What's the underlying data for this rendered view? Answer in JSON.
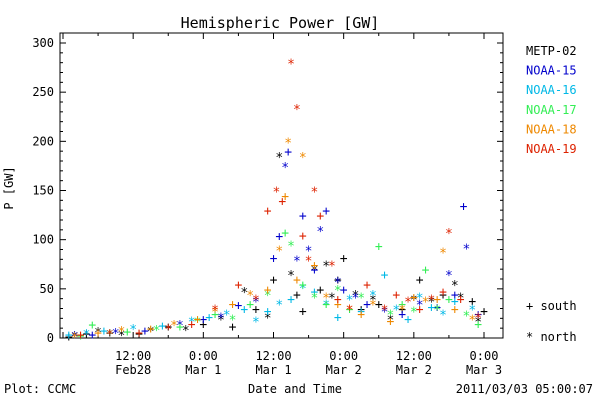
{
  "chart_data": {
    "type": "scatter",
    "title": "Hemispheric Power [GW]",
    "ylabel": "P [GW]",
    "xlabel": "Date and Time",
    "ylim": [
      0,
      300
    ],
    "xlim_hours": [
      0,
      72
    ],
    "yticks": [
      0,
      50,
      100,
      150,
      200,
      250,
      300
    ],
    "xticks": [
      {
        "hour": 12,
        "time": "12:00",
        "date": "Feb28"
      },
      {
        "hour": 24,
        "time": "0:00",
        "date": "Mar 1"
      },
      {
        "hour": 36,
        "time": "12:00",
        "date": "Mar 1"
      },
      {
        "hour": 48,
        "time": "0:00",
        "date": "Mar 2"
      },
      {
        "hour": 60,
        "time": "12:00",
        "date": "Mar 2"
      },
      {
        "hour": 72,
        "time": "0:00",
        "date": "Mar 3"
      }
    ],
    "legend_placement": "right",
    "symbol_legend": [
      {
        "symbol": "+",
        "label": "south"
      },
      {
        "symbol": "*",
        "label": "north"
      }
    ],
    "series": [
      {
        "name": "METP-02",
        "color": "#000000",
        "points": [
          [
            1,
            2,
            "+"
          ],
          [
            2,
            3,
            "*"
          ],
          [
            4,
            5,
            "+"
          ],
          [
            6,
            7,
            "*"
          ],
          [
            8,
            6,
            "+"
          ],
          [
            10,
            4,
            "*"
          ],
          [
            13,
            5,
            "+"
          ],
          [
            15,
            8,
            "*"
          ],
          [
            18,
            12,
            "+"
          ],
          [
            21,
            9,
            "*"
          ],
          [
            24,
            15,
            "+"
          ],
          [
            27,
            20,
            "*"
          ],
          [
            29,
            12,
            "+"
          ],
          [
            31,
            48,
            "*"
          ],
          [
            33,
            30,
            "+"
          ],
          [
            35,
            22,
            "*"
          ],
          [
            36,
            60,
            "+"
          ],
          [
            37,
            185,
            "*"
          ],
          [
            39,
            65,
            "*"
          ],
          [
            40,
            45,
            "+"
          ],
          [
            41,
            28,
            "+"
          ],
          [
            43,
            70,
            "*"
          ],
          [
            44,
            50,
            "+"
          ],
          [
            45,
            75,
            "*"
          ],
          [
            46,
            42,
            "*"
          ],
          [
            47,
            60,
            "+"
          ],
          [
            48,
            82,
            "+"
          ],
          [
            50,
            45,
            "*"
          ],
          [
            51,
            30,
            "+"
          ],
          [
            53,
            40,
            "*"
          ],
          [
            54,
            35,
            "+"
          ],
          [
            56,
            20,
            "*"
          ],
          [
            58,
            30,
            "+"
          ],
          [
            60,
            40,
            "*"
          ],
          [
            61,
            60,
            "+"
          ],
          [
            63,
            38,
            "*"
          ],
          [
            65,
            45,
            "+"
          ],
          [
            67,
            55,
            "*"
          ],
          [
            68,
            42,
            "*"
          ],
          [
            70,
            38,
            "+"
          ],
          [
            71,
            18,
            "*"
          ],
          [
            72,
            28,
            "+"
          ]
        ]
      },
      {
        "name": "NOAA-15",
        "color": "#0000cc",
        "points": [
          [
            2,
            3,
            "*"
          ],
          [
            5,
            4,
            "+"
          ],
          [
            9,
            6,
            "*"
          ],
          [
            14,
            8,
            "+"
          ],
          [
            20,
            14,
            "*"
          ],
          [
            24,
            20,
            "+"
          ],
          [
            27,
            22,
            "*"
          ],
          [
            30,
            34,
            "+"
          ],
          [
            33,
            38,
            "*"
          ],
          [
            36,
            82,
            "+"
          ],
          [
            37,
            104,
            "+"
          ],
          [
            38,
            175,
            "*"
          ],
          [
            38.5,
            190,
            "+"
          ],
          [
            40,
            80,
            "*"
          ],
          [
            41,
            125,
            "+"
          ],
          [
            42,
            90,
            "*"
          ],
          [
            43,
            70,
            "+"
          ],
          [
            44,
            110,
            "*"
          ],
          [
            45,
            130,
            "+"
          ],
          [
            47,
            58,
            "*"
          ],
          [
            48,
            50,
            "+"
          ],
          [
            50,
            42,
            "*"
          ],
          [
            52,
            35,
            "+"
          ],
          [
            55,
            28,
            "*"
          ],
          [
            58,
            25,
            "+"
          ],
          [
            61,
            35,
            "*"
          ],
          [
            64,
            32,
            "+"
          ],
          [
            66,
            65,
            "*"
          ],
          [
            67,
            45,
            "+"
          ],
          [
            68.5,
            135,
            "+"
          ],
          [
            69,
            92,
            "*"
          ],
          [
            71,
            25,
            "+"
          ]
        ]
      },
      {
        "name": "NOAA-16",
        "color": "#00b8e6",
        "points": [
          [
            1,
            4,
            "+"
          ],
          [
            4,
            5,
            "*"
          ],
          [
            7,
            8,
            "+"
          ],
          [
            12,
            10,
            "*"
          ],
          [
            17,
            13,
            "+"
          ],
          [
            22,
            18,
            "*"
          ],
          [
            25,
            22,
            "+"
          ],
          [
            28,
            25,
            "*"
          ],
          [
            31,
            30,
            "+"
          ],
          [
            33,
            18,
            "*"
          ],
          [
            35,
            28,
            "+"
          ],
          [
            37,
            35,
            "*"
          ],
          [
            39,
            40,
            "+"
          ],
          [
            41,
            52,
            "*"
          ],
          [
            43,
            48,
            "+"
          ],
          [
            45,
            35,
            "*"
          ],
          [
            47,
            22,
            "+"
          ],
          [
            49,
            40,
            "*"
          ],
          [
            51,
            28,
            "+"
          ],
          [
            53,
            45,
            "*"
          ],
          [
            55,
            65,
            "+"
          ],
          [
            57,
            30,
            "*"
          ],
          [
            59,
            20,
            "+"
          ],
          [
            61,
            42,
            "*"
          ],
          [
            63,
            32,
            "+"
          ],
          [
            65,
            25,
            "*"
          ],
          [
            67,
            38,
            "+"
          ],
          [
            70,
            30,
            "*"
          ]
        ]
      },
      {
        "name": "NOAA-17",
        "color": "#33ee55",
        "points": [
          [
            3,
            3,
            "+"
          ],
          [
            5,
            14,
            "+"
          ],
          [
            8,
            5,
            "*"
          ],
          [
            11,
            7,
            "+"
          ],
          [
            16,
            9,
            "*"
          ],
          [
            20,
            12,
            "+"
          ],
          [
            23,
            18,
            "*"
          ],
          [
            26,
            25,
            "+"
          ],
          [
            29,
            20,
            "*"
          ],
          [
            32,
            35,
            "+"
          ],
          [
            35,
            45,
            "*"
          ],
          [
            38,
            108,
            "+"
          ],
          [
            39,
            95,
            "*"
          ],
          [
            41,
            55,
            "+"
          ],
          [
            43,
            42,
            "*"
          ],
          [
            45,
            35,
            "+"
          ],
          [
            47,
            50,
            "*"
          ],
          [
            49,
            30,
            "+"
          ],
          [
            51,
            42,
            "*"
          ],
          [
            54,
            94,
            "+"
          ],
          [
            56,
            25,
            "*"
          ],
          [
            58,
            35,
            "+"
          ],
          [
            60,
            28,
            "*"
          ],
          [
            62,
            70,
            "+"
          ],
          [
            64,
            30,
            "*"
          ],
          [
            66,
            40,
            "+"
          ],
          [
            69,
            24,
            "*"
          ],
          [
            71,
            15,
            "+"
          ]
        ]
      },
      {
        "name": "NOAA-18",
        "color": "#ee8800",
        "points": [
          [
            2,
            2,
            "*"
          ],
          [
            6,
            6,
            "+"
          ],
          [
            10,
            8,
            "*"
          ],
          [
            15,
            10,
            "+"
          ],
          [
            19,
            14,
            "*"
          ],
          [
            23,
            20,
            "+"
          ],
          [
            26,
            28,
            "*"
          ],
          [
            29,
            35,
            "+"
          ],
          [
            32,
            45,
            "*"
          ],
          [
            35,
            50,
            "+"
          ],
          [
            37,
            90,
            "*"
          ],
          [
            38,
            145,
            "+"
          ],
          [
            38.5,
            200,
            "*"
          ],
          [
            40,
            60,
            "+"
          ],
          [
            41,
            185,
            "*"
          ],
          [
            43,
            75,
            "+"
          ],
          [
            45,
            42,
            "*"
          ],
          [
            47,
            35,
            "+"
          ],
          [
            49,
            30,
            "*"
          ],
          [
            51,
            25,
            "+"
          ],
          [
            53,
            35,
            "*"
          ],
          [
            56,
            18,
            "+"
          ],
          [
            58,
            30,
            "*"
          ],
          [
            60,
            42,
            "+"
          ],
          [
            62,
            38,
            "*"
          ],
          [
            64,
            40,
            "+"
          ],
          [
            65,
            88,
            "*"
          ],
          [
            67,
            30,
            "+"
          ],
          [
            70,
            20,
            "*"
          ]
        ]
      },
      {
        "name": "NOAA-19",
        "color": "#dd2200",
        "points": [
          [
            3,
            4,
            "+"
          ],
          [
            8,
            5,
            "*"
          ],
          [
            13,
            6,
            "+"
          ],
          [
            18,
            10,
            "*"
          ],
          [
            22,
            15,
            "+"
          ],
          [
            26,
            30,
            "*"
          ],
          [
            30,
            55,
            "+"
          ],
          [
            33,
            40,
            "*"
          ],
          [
            35,
            130,
            "+"
          ],
          [
            36.5,
            150,
            "*"
          ],
          [
            37.5,
            140,
            "+"
          ],
          [
            39,
            280,
            "*"
          ],
          [
            40,
            234,
            "*"
          ],
          [
            41,
            105,
            "+"
          ],
          [
            42,
            80,
            "*"
          ],
          [
            43,
            150,
            "*"
          ],
          [
            44,
            125,
            "+"
          ],
          [
            46,
            75,
            "*"
          ],
          [
            47,
            40,
            "+"
          ],
          [
            49,
            30,
            "*"
          ],
          [
            52,
            55,
            "+"
          ],
          [
            55,
            30,
            "*"
          ],
          [
            57,
            45,
            "+"
          ],
          [
            59,
            38,
            "*"
          ],
          [
            61,
            30,
            "+"
          ],
          [
            63,
            40,
            "*"
          ],
          [
            65,
            48,
            "+"
          ],
          [
            66,
            108,
            "*"
          ],
          [
            68,
            40,
            "+"
          ],
          [
            71,
            22,
            "*"
          ]
        ]
      }
    ]
  },
  "footer": {
    "left": "Plot: CCMC",
    "right": "2011/03/03 05:00:07"
  }
}
